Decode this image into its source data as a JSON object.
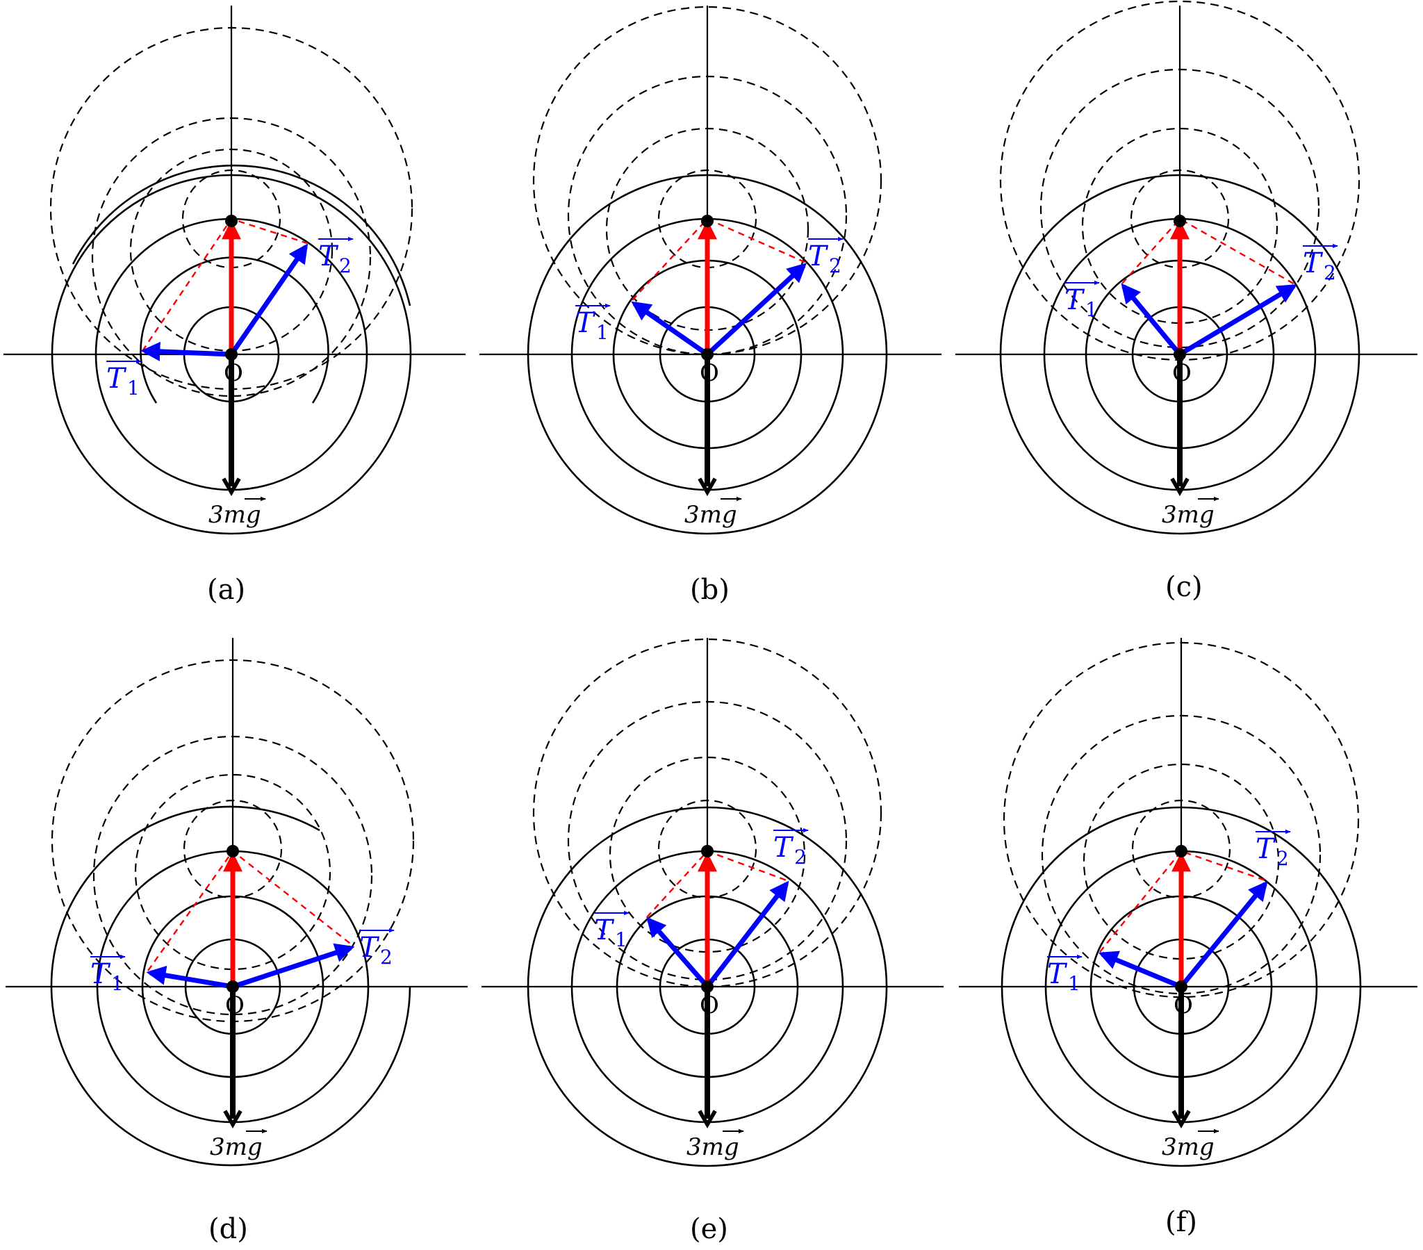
{
  "origin_label": "O",
  "weight_label": "3mg",
  "tension_symbol": "T",
  "panels": [
    {
      "label": "(a)",
      "t1_sub": "1",
      "t2_sub": "2"
    },
    {
      "label": "(b)",
      "t1_sub": "1",
      "t2_sub": "2"
    },
    {
      "label": "(c)",
      "t1_sub": "1",
      "t2_sub": "2"
    },
    {
      "label": "(d)",
      "t1_sub": "1",
      "t2_sub": "2"
    },
    {
      "label": "(e)",
      "t1_sub": "1",
      "t2_sub": "2"
    },
    {
      "label": "(f)",
      "t1_sub": "1",
      "t2_sub": "2"
    }
  ],
  "colors": {
    "resultant": "#ff0000",
    "tension": "#0000ff",
    "weight": "#000000",
    "circles": "#000000"
  }
}
